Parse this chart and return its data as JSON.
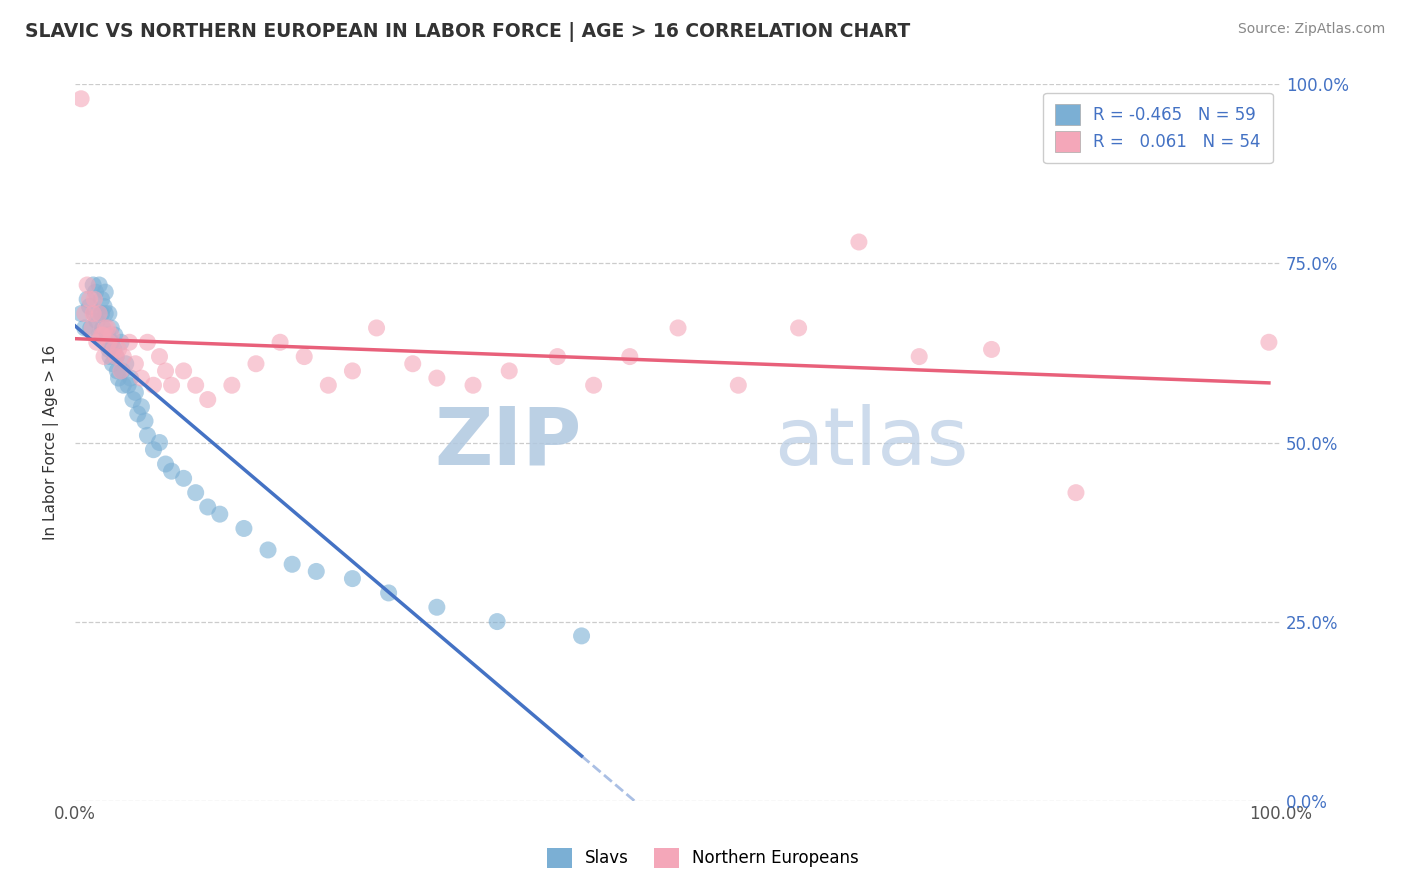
{
  "title": "SLAVIC VS NORTHERN EUROPEAN IN LABOR FORCE | AGE > 16 CORRELATION CHART",
  "source": "Source: ZipAtlas.com",
  "ylabel": "In Labor Force | Age > 16",
  "xlim": [
    0.0,
    1.0
  ],
  "ylim": [
    0.0,
    1.0
  ],
  "ytick_values": [
    0.0,
    0.25,
    0.5,
    0.75,
    1.0
  ],
  "ytick_labels": [
    "0.0%",
    "25.0%",
    "50.0%",
    "75.0%",
    "100.0%"
  ],
  "background_color": "#ffffff",
  "grid_color": "#cccccc",
  "title_color": "#333333",
  "source_color": "#888888",
  "watermark_text": "ZIPatlas",
  "watermark_color": "#c8d8e8",
  "legend_R1": "-0.465",
  "legend_N1": "59",
  "legend_R2": "0.061",
  "legend_N2": "54",
  "legend_label1": "Slavs",
  "legend_label2": "Northern Europeans",
  "color_slavs": "#7bafd4",
  "color_northern": "#f4a7b9",
  "line_color_slavs": "#4472c4",
  "line_color_northern": "#e8607a",
  "slavs_x": [
    0.005,
    0.008,
    0.01,
    0.012,
    0.013,
    0.015,
    0.016,
    0.017,
    0.018,
    0.02,
    0.02,
    0.022,
    0.022,
    0.023,
    0.024,
    0.025,
    0.025,
    0.026,
    0.027,
    0.028,
    0.028,
    0.029,
    0.03,
    0.03,
    0.031,
    0.032,
    0.033,
    0.034,
    0.035,
    0.036,
    0.038,
    0.039,
    0.04,
    0.042,
    0.044,
    0.046,
    0.048,
    0.05,
    0.052,
    0.055,
    0.058,
    0.06,
    0.065,
    0.07,
    0.075,
    0.08,
    0.09,
    0.1,
    0.11,
    0.12,
    0.14,
    0.16,
    0.18,
    0.2,
    0.23,
    0.26,
    0.3,
    0.35,
    0.42
  ],
  "slavs_y": [
    0.68,
    0.66,
    0.7,
    0.69,
    0.66,
    0.72,
    0.68,
    0.71,
    0.67,
    0.72,
    0.65,
    0.7,
    0.68,
    0.66,
    0.69,
    0.71,
    0.68,
    0.64,
    0.65,
    0.68,
    0.63,
    0.62,
    0.66,
    0.64,
    0.61,
    0.63,
    0.65,
    0.62,
    0.6,
    0.59,
    0.64,
    0.6,
    0.58,
    0.61,
    0.58,
    0.59,
    0.56,
    0.57,
    0.54,
    0.55,
    0.53,
    0.51,
    0.49,
    0.5,
    0.47,
    0.46,
    0.45,
    0.43,
    0.41,
    0.4,
    0.38,
    0.35,
    0.33,
    0.32,
    0.31,
    0.29,
    0.27,
    0.25,
    0.23
  ],
  "northern_x": [
    0.005,
    0.008,
    0.01,
    0.012,
    0.014,
    0.015,
    0.016,
    0.018,
    0.02,
    0.022,
    0.023,
    0.024,
    0.025,
    0.027,
    0.028,
    0.03,
    0.032,
    0.034,
    0.036,
    0.038,
    0.04,
    0.045,
    0.05,
    0.055,
    0.06,
    0.065,
    0.07,
    0.075,
    0.08,
    0.09,
    0.1,
    0.11,
    0.13,
    0.15,
    0.17,
    0.19,
    0.21,
    0.23,
    0.25,
    0.28,
    0.3,
    0.33,
    0.36,
    0.4,
    0.43,
    0.46,
    0.5,
    0.55,
    0.6,
    0.65,
    0.7,
    0.76,
    0.83,
    0.99
  ],
  "northern_y": [
    0.98,
    0.68,
    0.72,
    0.7,
    0.66,
    0.68,
    0.7,
    0.64,
    0.68,
    0.65,
    0.65,
    0.62,
    0.66,
    0.66,
    0.64,
    0.65,
    0.63,
    0.62,
    0.63,
    0.6,
    0.62,
    0.64,
    0.61,
    0.59,
    0.64,
    0.58,
    0.62,
    0.6,
    0.58,
    0.6,
    0.58,
    0.56,
    0.58,
    0.61,
    0.64,
    0.62,
    0.58,
    0.6,
    0.66,
    0.61,
    0.59,
    0.58,
    0.6,
    0.62,
    0.58,
    0.62,
    0.66,
    0.58,
    0.66,
    0.78,
    0.62,
    0.63,
    0.43,
    0.64
  ]
}
